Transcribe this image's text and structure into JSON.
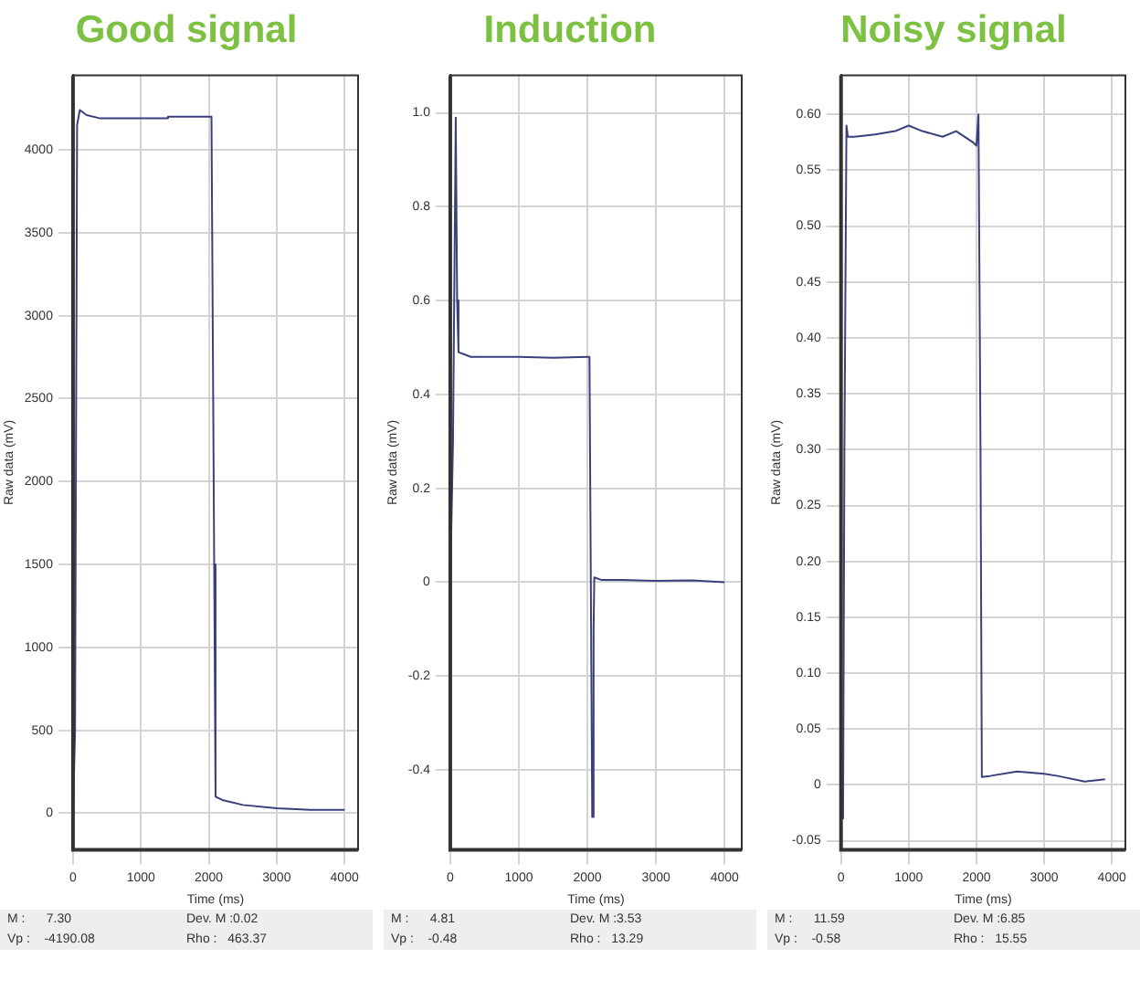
{
  "chart_data": [
    {
      "type": "line",
      "title": "Good signal",
      "xlabel": "Time (ms)",
      "ylabel": "Raw data (mV)",
      "xlim": [
        0,
        4200
      ],
      "xticks": [
        0,
        1000,
        2000,
        3000,
        4000
      ],
      "ylim": [
        -220,
        4450
      ],
      "yticks": [
        0,
        500,
        1000,
        1500,
        2000,
        2500,
        3000,
        3500,
        4000
      ],
      "grid": true,
      "legend": false,
      "marker": "none",
      "line_style": "solid",
      "series": [
        {
          "color": "#3b3f7c",
          "x": [
            0,
            30,
            60,
            100,
            200,
            400,
            1000,
            1380,
            1400,
            2000,
            2040,
            2080,
            2100,
            2200,
            2500,
            3000,
            3500,
            4000
          ],
          "values": [
            0,
            500,
            4150,
            4240,
            4210,
            4190,
            4190,
            4190,
            4200,
            4200,
            4200,
            1500,
            100,
            80,
            50,
            30,
            20,
            20
          ]
        }
      ],
      "annotations": [
        "M :      7.30",
        "Dev. M :0.02",
        "Vp :    -4190.08",
        "Rho :   463.37"
      ]
    },
    {
      "type": "line",
      "title": "Induction",
      "xlabel": "Time (ms)",
      "ylabel": "Raw data (mV)",
      "xlim": [
        0,
        4250
      ],
      "xticks": [
        0,
        1000,
        2000,
        3000,
        4000
      ],
      "ylim": [
        -0.57,
        1.08
      ],
      "yticks": [
        -0.4,
        -0.2,
        0,
        0.2,
        0.4,
        0.6,
        0.8,
        {
          "value": 1,
          "label": "1.0"
        }
      ],
      "grid": true,
      "legend": false,
      "marker": "none",
      "line_style": "solid",
      "series": [
        {
          "color": "#3b3f7c",
          "x": [
            0,
            40,
            80,
            100,
            120,
            300,
            1000,
            1500,
            2000,
            2030,
            2070,
            2090,
            2100,
            2200,
            2500,
            3000,
            3500,
            4000
          ],
          "values": [
            0,
            0.3,
            0.99,
            0.6,
            0.49,
            0.48,
            0.48,
            0.478,
            0.48,
            0.48,
            -0.5,
            -0.1,
            0.01,
            0.005,
            0.005,
            0.003,
            0.004,
            0
          ]
        }
      ],
      "annotations": [
        "M :      4.81",
        "Dev. M :3.53",
        "Vp :    -0.48",
        "Rho :   13.29"
      ]
    },
    {
      "type": "line",
      "title": "Noisy signal",
      "xlabel": "Time (ms)",
      "ylabel": "Raw data (mV)",
      "xlim": [
        0,
        4200
      ],
      "xticks": [
        0,
        1000,
        2000,
        3000,
        4000
      ],
      "ylim": [
        -0.058,
        0.635
      ],
      "yticks": [
        -0.05,
        0,
        {
          "value": 0.05,
          "label": "0.05"
        },
        {
          "value": 0.1,
          "label": "0.10"
        },
        {
          "value": 0.15,
          "label": "0.15"
        },
        {
          "value": 0.2,
          "label": "0.20"
        },
        {
          "value": 0.25,
          "label": "0.25"
        },
        {
          "value": 0.3,
          "label": "0.30"
        },
        {
          "value": 0.35,
          "label": "0.35"
        },
        {
          "value": 0.4,
          "label": "0.40"
        },
        {
          "value": 0.45,
          "label": "0.45"
        },
        {
          "value": 0.5,
          "label": "0.50"
        },
        {
          "value": 0.55,
          "label": "0.55"
        },
        {
          "value": 0.6,
          "label": "0.60"
        }
      ],
      "grid": true,
      "legend": false,
      "marker": "none",
      "line_style": "solid",
      "series": [
        {
          "color": "#3b3f7c",
          "x": [
            0,
            30,
            50,
            80,
            100,
            200,
            500,
            800,
            1000,
            1200,
            1500,
            1700,
            1950,
            2000,
            2030,
            2060,
            2080,
            2200,
            2600,
            3000,
            3200,
            3600,
            3900
          ],
          "values": [
            0,
            -0.03,
            0.3,
            0.59,
            0.58,
            0.58,
            0.582,
            0.585,
            0.59,
            0.585,
            0.58,
            0.585,
            0.575,
            0.572,
            0.6,
            0.3,
            0.007,
            0.008,
            0.012,
            0.01,
            0.008,
            0.003,
            0.005
          ]
        }
      ],
      "annotations": [
        "M :      11.59",
        "Dev. M :6.85",
        "Vp :    -0.58",
        "Rho :   15.55"
      ]
    }
  ]
}
